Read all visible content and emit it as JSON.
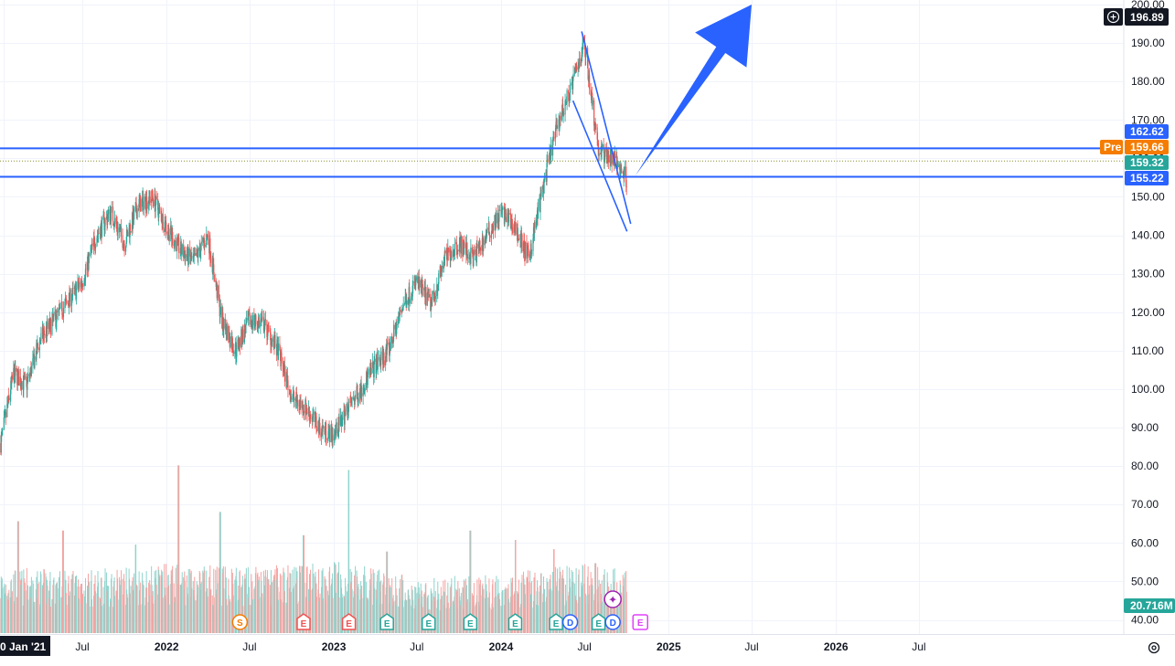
{
  "chart_data": {
    "type": "candlestick",
    "title": "",
    "xlabel": "",
    "ylabel": "",
    "ylim": [
      37.5,
      200
    ],
    "grid": true,
    "colors": {
      "up": "#26a69a",
      "down": "#ef5350",
      "volume_up": "#8fd3cc",
      "volume_down": "#f5a3a1",
      "drawing": "#2962ff",
      "prepost": "#f57c00",
      "axis_text": "#131722",
      "grid": "#f0f3fa"
    },
    "y_ticks": [
      "40.00",
      "50.00",
      "60.00",
      "70.00",
      "80.00",
      "90.00",
      "100.00",
      "110.00",
      "120.00",
      "130.00",
      "140.00",
      "150.00",
      "160.00",
      "170.00",
      "180.00",
      "190.00",
      "200.00"
    ],
    "x_ticks": [
      {
        "label": "0 Jan '21",
        "date": "2021-01-10",
        "bold": true,
        "boxed": true
      },
      {
        "label": "Jul",
        "date": "2021-07-01",
        "bold": false
      },
      {
        "label": "2022",
        "date": "2022-01-01",
        "bold": true
      },
      {
        "label": "Jul",
        "date": "2022-07-01",
        "bold": false
      },
      {
        "label": "2023",
        "date": "2023-01-01",
        "bold": true
      },
      {
        "label": "Jul",
        "date": "2023-07-01",
        "bold": false
      },
      {
        "label": "2024",
        "date": "2024-01-01",
        "bold": true
      },
      {
        "label": "Jul",
        "date": "2024-07-01",
        "bold": false
      },
      {
        "label": "2025",
        "date": "2025-01-01",
        "bold": true
      },
      {
        "label": "Jul",
        "date": "2025-07-01",
        "bold": false
      },
      {
        "label": "2026",
        "date": "2026-01-01",
        "bold": true
      },
      {
        "label": "Jul",
        "date": "2026-07-01",
        "bold": false
      }
    ],
    "price_path": [
      [
        "2021-01-04",
        86
      ],
      [
        "2021-02-01",
        104
      ],
      [
        "2021-03-01",
        101
      ],
      [
        "2021-04-01",
        113
      ],
      [
        "2021-05-01",
        118
      ],
      [
        "2021-06-01",
        123
      ],
      [
        "2021-07-01",
        128
      ],
      [
        "2021-08-01",
        140
      ],
      [
        "2021-09-01",
        146
      ],
      [
        "2021-10-01",
        138
      ],
      [
        "2021-11-01",
        148
      ],
      [
        "2021-12-01",
        150
      ],
      [
        "2022-01-01",
        142
      ],
      [
        "2022-02-01",
        136
      ],
      [
        "2022-03-01",
        133
      ],
      [
        "2022-04-01",
        140
      ],
      [
        "2022-05-01",
        118
      ],
      [
        "2022-06-01",
        110
      ],
      [
        "2022-07-01",
        118
      ],
      [
        "2022-08-01",
        117
      ],
      [
        "2022-09-01",
        110
      ],
      [
        "2022-10-01",
        98
      ],
      [
        "2022-11-01",
        95
      ],
      [
        "2022-12-01",
        90
      ],
      [
        "2023-01-01",
        88
      ],
      [
        "2023-02-01",
        95
      ],
      [
        "2023-03-01",
        100
      ],
      [
        "2023-04-01",
        106
      ],
      [
        "2023-05-01",
        110
      ],
      [
        "2023-06-01",
        122
      ],
      [
        "2023-07-01",
        128
      ],
      [
        "2023-08-01",
        122
      ],
      [
        "2023-09-01",
        134
      ],
      [
        "2023-10-01",
        138
      ],
      [
        "2023-11-01",
        134
      ],
      [
        "2023-12-01",
        140
      ],
      [
        "2024-01-01",
        146
      ],
      [
        "2024-02-01",
        142
      ],
      [
        "2024-03-01",
        134
      ],
      [
        "2024-04-01",
        152
      ],
      [
        "2024-05-01",
        168
      ],
      [
        "2024-06-01",
        178
      ],
      [
        "2024-07-01",
        190
      ],
      [
        "2024-08-01",
        162
      ],
      [
        "2024-09-01",
        160
      ],
      [
        "2024-10-01",
        155
      ]
    ],
    "volume_path": [
      [
        "2021-01-04",
        19
      ],
      [
        "2021-07-01",
        18
      ],
      [
        "2022-01-01",
        20
      ],
      [
        "2022-07-01",
        19
      ],
      [
        "2023-01-01",
        21
      ],
      [
        "2023-07-01",
        16
      ],
      [
        "2024-01-01",
        17
      ],
      [
        "2024-07-01",
        20
      ],
      [
        "2024-10-01",
        18
      ]
    ],
    "volume_spikes": [
      [
        "2021-02-11",
        48
      ],
      [
        "2021-05-20",
        44
      ],
      [
        "2021-10-25",
        38
      ],
      [
        "2022-01-27",
        72
      ],
      [
        "2022-04-28",
        52
      ],
      [
        "2022-10-27",
        42
      ],
      [
        "2023-02-03",
        70
      ],
      [
        "2023-04-27",
        35
      ],
      [
        "2023-10-26",
        44
      ],
      [
        "2024-02-02",
        40
      ],
      [
        "2024-04-26",
        36
      ],
      [
        "2024-07-25",
        30
      ]
    ],
    "channel_lines": [
      {
        "name": "upper",
        "from": [
          "2024-06-25",
          193
        ],
        "to": [
          "2024-10-10",
          143
        ]
      },
      {
        "name": "lower",
        "from": [
          "2024-06-06",
          175
        ],
        "to": [
          "2024-10-02",
          141
        ]
      }
    ],
    "arrow": {
      "from": [
        "2024-10-20",
        155.5
      ],
      "to": [
        "2025-07-01",
        200
      ]
    },
    "horizontal_lines": [
      {
        "price": 162.62,
        "label": "162.62"
      },
      {
        "price": 155.22,
        "label": "155.22"
      }
    ],
    "last_price_line": {
      "price": 159.32
    },
    "price_labels": {
      "drawing_high": "196.89",
      "upper_line": "162.62",
      "pre_tag": "Pre",
      "pre_value": "159.66",
      "last": "159.32",
      "lower_line": "155.22",
      "volume": "20.716M"
    },
    "events": [
      {
        "type": "S",
        "date": "2022-06-10"
      },
      {
        "type": "E",
        "date": "2022-10-27"
      },
      {
        "type": "E",
        "date": "2023-02-03"
      },
      {
        "type": "E",
        "date": "2023-04-27"
      },
      {
        "type": "E",
        "date": "2023-07-27"
      },
      {
        "type": "E",
        "date": "2023-10-26"
      },
      {
        "type": "E",
        "date": "2024-02-01"
      },
      {
        "type": "E",
        "date": "2024-04-30"
      },
      {
        "type": "D",
        "date": "2024-05-31"
      },
      {
        "type": "E",
        "date": "2024-08-01"
      },
      {
        "type": "D",
        "date": "2024-09-01"
      },
      {
        "type": "E-upcoming",
        "date": "2024-10-31"
      }
    ],
    "star_event": {
      "date": "2024-09-01"
    }
  }
}
